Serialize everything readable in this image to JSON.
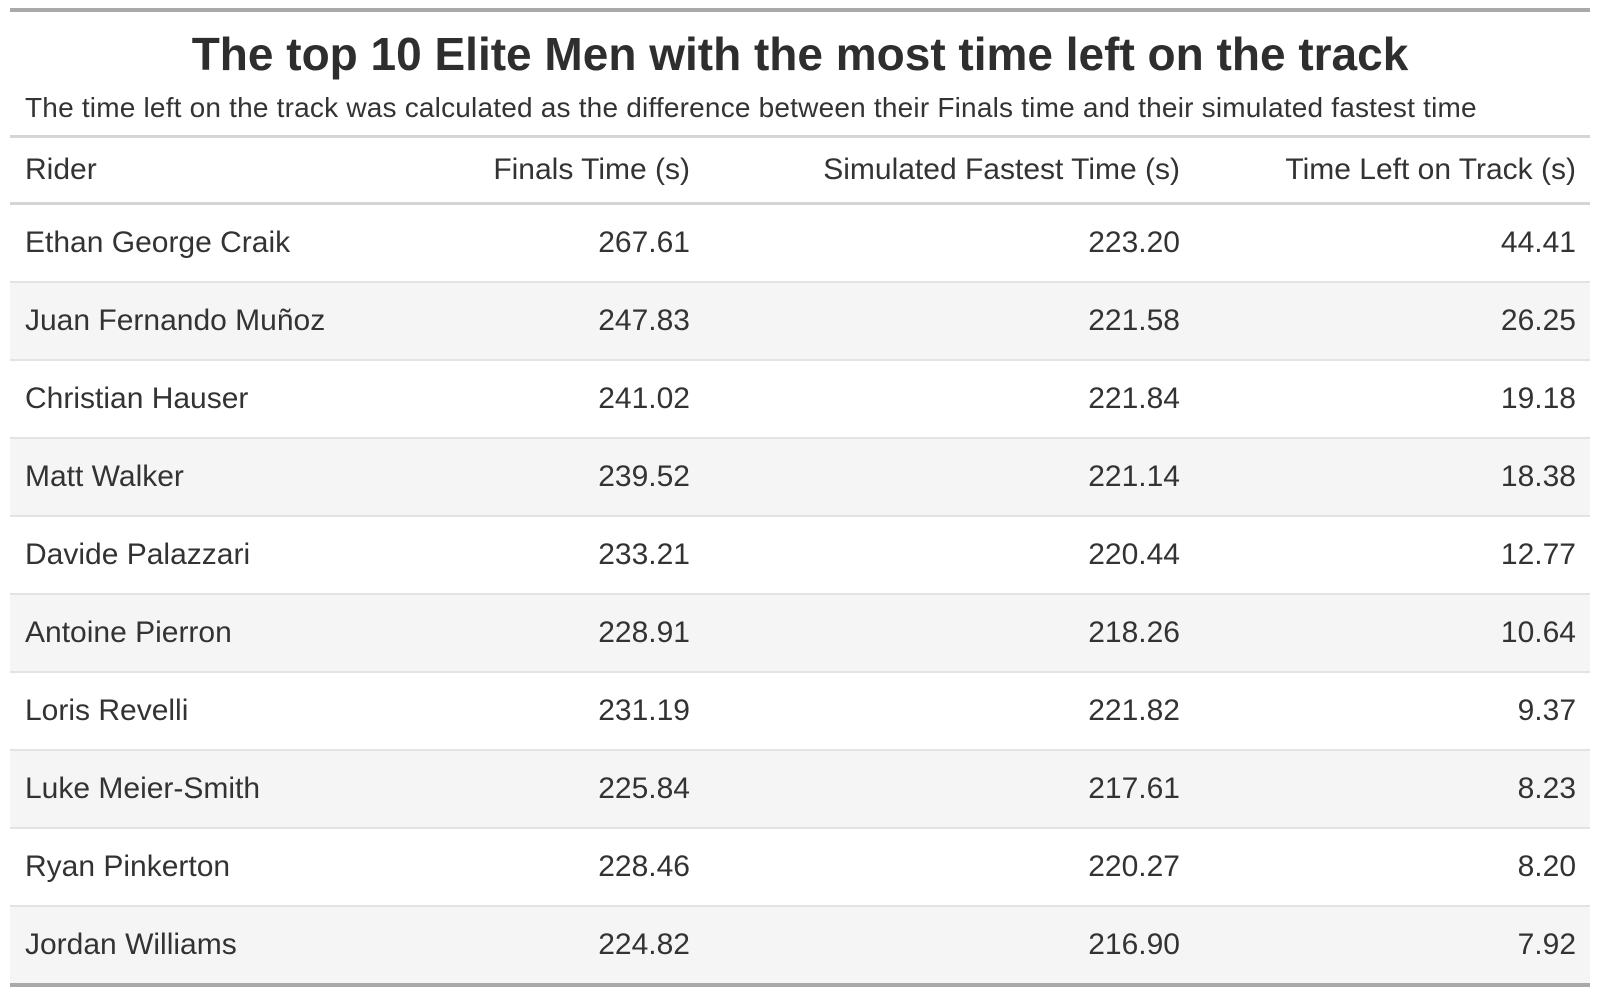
{
  "chart_data": {
    "type": "table",
    "title": "The top 10 Elite Men with the most time left on the track",
    "subtitle": "The time left on the track was calculated as the difference between their Finals time and their simulated fastest time",
    "columns": [
      "Rider",
      "Finals Time (s)",
      "Simulated Fastest Time (s)",
      "Time Left on Track (s)"
    ],
    "rows": [
      [
        "Ethan George Craik",
        "267.61",
        "223.20",
        "44.41"
      ],
      [
        "Juan Fernando Muñoz",
        "247.83",
        "221.58",
        "26.25"
      ],
      [
        "Christian Hauser",
        "241.02",
        "221.84",
        "19.18"
      ],
      [
        "Matt Walker",
        "239.52",
        "221.14",
        "18.38"
      ],
      [
        "Davide Palazzari",
        "233.21",
        "220.44",
        "12.77"
      ],
      [
        "Antoine Pierron",
        "228.91",
        "218.26",
        "10.64"
      ],
      [
        "Loris Revelli",
        "231.19",
        "221.82",
        "9.37"
      ],
      [
        "Luke Meier-Smith",
        "225.84",
        "217.61",
        "8.23"
      ],
      [
        "Ryan Pinkerton",
        "228.46",
        "220.27",
        "8.20"
      ],
      [
        "Jordan Williams",
        "224.82",
        "216.90",
        "7.92"
      ]
    ],
    "layout_hints": {
      "striped_rows": true,
      "stripe_applies_to": "even rows starting with row 2",
      "numeric_columns_alignment": "right",
      "rider_column_alignment": "left"
    }
  },
  "colors": {
    "outer_border": "#A9A9A9",
    "header_border": "#D5D5D5",
    "row_divider": "#E3E3E3",
    "stripe_background": "#F5F5F6",
    "text": "#333333",
    "title_text": "#2E2E2E",
    "background": "#FFFFFF"
  }
}
